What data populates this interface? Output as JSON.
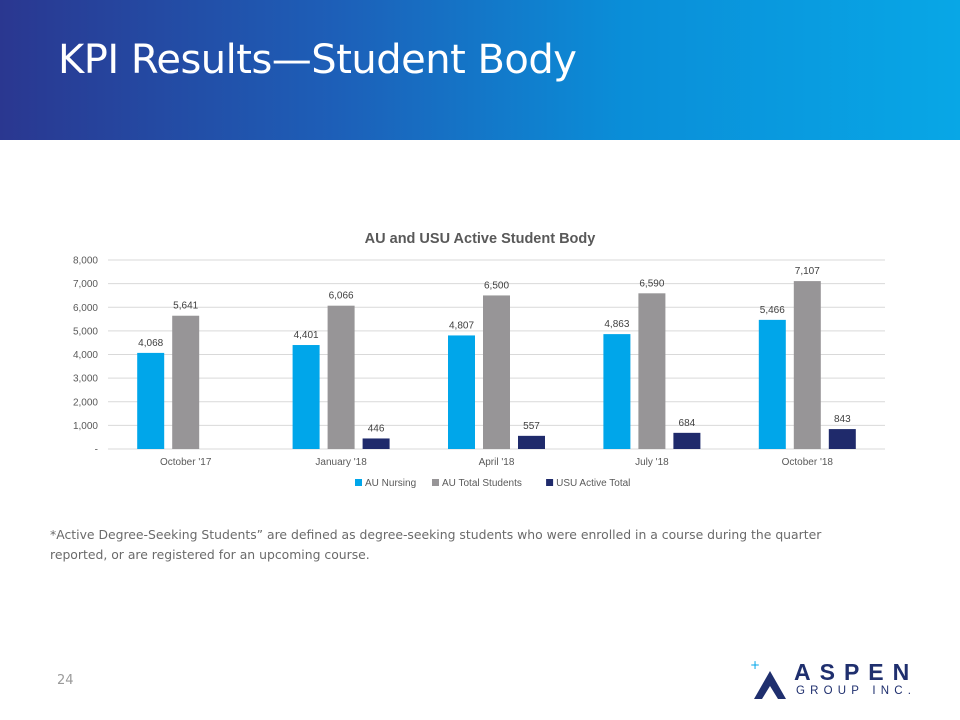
{
  "slide": {
    "title": "KPI Results—Student Body",
    "footnote": "*Active Degree-Seeking Students” are defined as degree-seeking students who were enrolled in a course during the quarter reported, or are registered for an upcoming course.",
    "page_number": "24"
  },
  "logo": {
    "line1": "ASPEN",
    "line2": "GROUP INC."
  },
  "colors": {
    "au_nursing": "#00a6ea",
    "au_total": "#979597",
    "usu_active": "#1f2a6b",
    "grid": "#d9d9d9"
  },
  "chart_data": {
    "type": "bar",
    "title": "AU and USU Active Student Body",
    "categories": [
      "October '17",
      "January '18",
      "April '18",
      "July '18",
      "October '18"
    ],
    "series": [
      {
        "name": "AU Nursing",
        "values": [
          4068,
          4401,
          4807,
          4863,
          5466
        ]
      },
      {
        "name": "AU Total Students",
        "values": [
          5641,
          6066,
          6500,
          6590,
          7107
        ]
      },
      {
        "name": "USU Active Total",
        "values": [
          null,
          446,
          557,
          684,
          843
        ]
      }
    ],
    "data_labels": [
      [
        "4,068",
        "4,401",
        "4,807",
        "4,863",
        "5,466"
      ],
      [
        "5,641",
        "6,066",
        "6,500",
        "6,590",
        "7,107"
      ],
      [
        "",
        "446",
        "557",
        "684",
        "843"
      ]
    ],
    "yticks": [
      0,
      1000,
      2000,
      3000,
      4000,
      5000,
      6000,
      7000,
      8000
    ],
    "ytick_labels": [
      "-",
      "1,000",
      "2,000",
      "3,000",
      "4,000",
      "5,000",
      "6,000",
      "7,000",
      "8,000"
    ],
    "ylim": [
      0,
      8000
    ],
    "grid": true,
    "legend": "bottom"
  }
}
